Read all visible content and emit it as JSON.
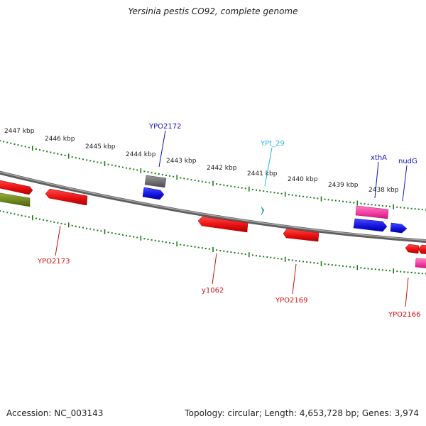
{
  "title": "Yersinia pestis CO92, complete genome",
  "accession": "Accession: NC_003143",
  "summary": "Topology: circular; Length: 4,653,728 bp; Genes: 3,974",
  "colors": {
    "backbone": "#8a8a8a",
    "tick": "#1a7a1a",
    "forward_label": "#1010c0",
    "reverse_label": "#d01010",
    "rna_label": "#22b8e0",
    "cds_forward": "#1515e0",
    "cds_reverse": "#e81010",
    "pseudo": "#707070",
    "rrna": "#f23fa0",
    "other": "#6f8a20"
  },
  "kbp_ticks": [
    "2447 kbp",
    "2446 kbp",
    "2445 kbp",
    "2444 kbp",
    "2443 kbp",
    "2442 kbp",
    "2441 kbp",
    "2440 kbp",
    "2439 kbp",
    "2438 kbp"
  ],
  "gene_labels": {
    "ypo2172": "YPO2172",
    "ypt29": "YPt_29",
    "xtha": "xthA",
    "nudg": "nudG",
    "ypo2173": "YPO2173",
    "y1062": "y1062",
    "ypo2169": "YPO2169",
    "ypo2166": "YPO2166"
  }
}
